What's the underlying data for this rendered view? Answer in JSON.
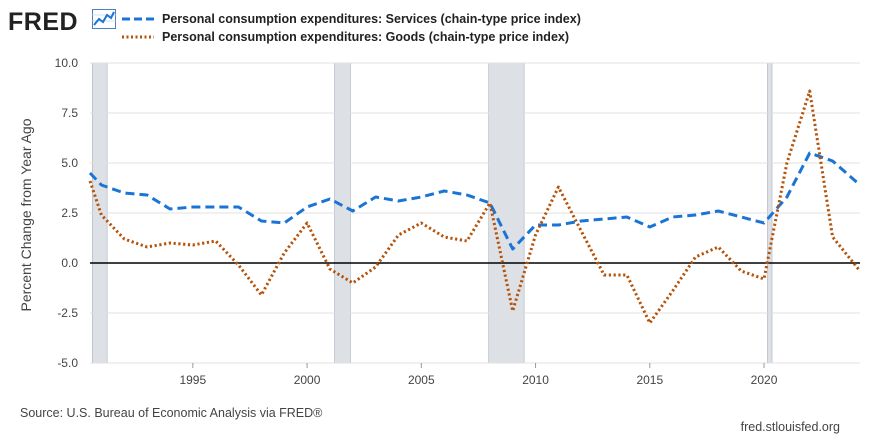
{
  "header": {
    "logo_text": "FRED",
    "logo_icon": "trend-line-icon"
  },
  "footer": {
    "source": "Source: U.S. Bureau of Economic Analysis via FRED®",
    "site": "fred.stlouisfed.org"
  },
  "colors": {
    "services": "#1a74d6",
    "goods": "#b5530a",
    "recession": "#dde1e6",
    "grid": "#e0e0e0",
    "zero_line": "#000000"
  },
  "chart_data": {
    "type": "line",
    "ylabel": "Percent Change from Year Ago",
    "xlabel": "",
    "xlim": [
      1990.5,
      2024.2
    ],
    "ylim": [
      -5,
      10
    ],
    "y_ticks": [
      -5,
      -2.5,
      0,
      2.5,
      5,
      7.5,
      10
    ],
    "y_tick_labels": [
      "-5.0",
      "-2.5",
      "0.0",
      "2.5",
      "5.0",
      "7.5",
      "10.0"
    ],
    "x_ticks": [
      1995,
      2000,
      2005,
      2010,
      2015,
      2020
    ],
    "x_tick_labels": [
      "1995",
      "2000",
      "2005",
      "2010",
      "2015",
      "2020"
    ],
    "grid": "horizontal",
    "legend_position": "top",
    "recessions": [
      [
        1990.6,
        1991.25
      ],
      [
        2001.2,
        2001.9
      ],
      [
        2007.95,
        2009.5
      ],
      [
        2020.15,
        2020.35
      ]
    ],
    "series": [
      {
        "name": "Personal consumption expenditures: Services (chain-type price index)",
        "style": "dashed",
        "x": [
          1990.5,
          1991,
          1992,
          1993,
          1994,
          1995,
          1996,
          1997,
          1998,
          1999,
          2000,
          2001,
          2002,
          2003,
          2004,
          2005,
          2006,
          2007,
          2008,
          2009,
          2010,
          2011,
          2012,
          2013,
          2014,
          2015,
          2016,
          2017,
          2018,
          2019,
          2020,
          2021,
          2022,
          2023,
          2024.2
        ],
        "values": [
          4.5,
          3.9,
          3.5,
          3.4,
          2.7,
          2.8,
          2.8,
          2.8,
          2.1,
          2.0,
          2.8,
          3.2,
          2.6,
          3.3,
          3.1,
          3.3,
          3.6,
          3.4,
          3.0,
          0.7,
          1.9,
          1.9,
          2.1,
          2.2,
          2.3,
          1.8,
          2.3,
          2.4,
          2.6,
          2.3,
          2.0,
          3.3,
          5.5,
          5.1,
          3.9
        ]
      },
      {
        "name": "Personal consumption expenditures: Goods (chain-type price index)",
        "style": "dotted",
        "x": [
          1990.5,
          1991,
          1992,
          1993,
          1994,
          1995,
          1996,
          1997,
          1998,
          1999,
          2000,
          2001,
          2002,
          2003,
          2004,
          2005,
          2006,
          2007,
          2008,
          2009,
          2010,
          2011,
          2012,
          2013,
          2014,
          2015,
          2016,
          2017,
          2018,
          2019,
          2020,
          2021,
          2022,
          2023,
          2024.2
        ],
        "values": [
          4.1,
          2.4,
          1.2,
          0.8,
          1.0,
          0.9,
          1.1,
          -0.1,
          -1.6,
          0.5,
          2.0,
          -0.3,
          -1.0,
          -0.2,
          1.4,
          2.0,
          1.3,
          1.1,
          3.0,
          -2.4,
          1.4,
          3.8,
          1.6,
          -0.6,
          -0.6,
          -3.0,
          -1.4,
          0.3,
          0.8,
          -0.4,
          -0.8,
          5.0,
          8.6,
          1.3,
          -0.4
        ]
      }
    ]
  }
}
